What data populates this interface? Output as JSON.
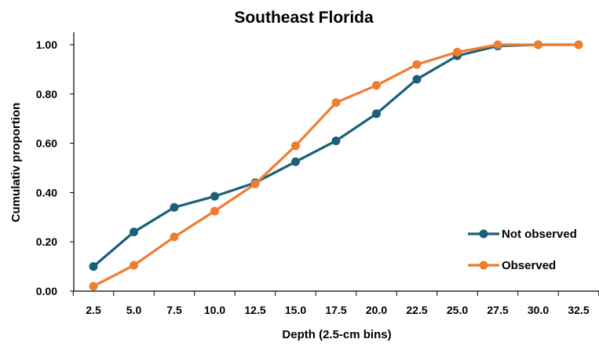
{
  "chart_data": {
    "type": "line",
    "title": "Southeast Florida",
    "xlabel": "Depth  (2.5-cm bins)",
    "ylabel": "Cumulativ proportion",
    "categories": [
      "2.5",
      "5.0",
      "7.5",
      "10.0",
      "12.5",
      "15.0",
      "17.5",
      "20.0",
      "22.5",
      "25.0",
      "27.5",
      "30.0",
      "32.5"
    ],
    "y_ticks": [
      "0.00",
      "0.20",
      "0.40",
      "0.60",
      "0.80",
      "1.00"
    ],
    "ylim": [
      0,
      1.05
    ],
    "grid": false,
    "legend_position": "bottom-right",
    "series": [
      {
        "name": "Not observed",
        "color": "#1a5f7a",
        "values": [
          0.1,
          0.24,
          0.34,
          0.385,
          0.44,
          0.525,
          0.61,
          0.72,
          0.86,
          0.955,
          0.995,
          1.0,
          1.0
        ]
      },
      {
        "name": "Observed",
        "color": "#ed7d31",
        "values": [
          0.02,
          0.105,
          0.22,
          0.325,
          0.435,
          0.59,
          0.765,
          0.835,
          0.92,
          0.97,
          1.0,
          1.0,
          1.0
        ]
      }
    ]
  }
}
